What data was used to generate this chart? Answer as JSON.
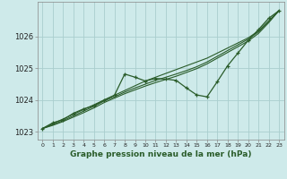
{
  "title": "Graphe pression niveau de la mer (hPa)",
  "background_color": "#ceeaea",
  "grid_color": "#aacece",
  "line_color": "#2a5c2a",
  "xlim": [
    -0.5,
    23.5
  ],
  "ylim": [
    1022.75,
    1027.1
  ],
  "yticks": [
    1023,
    1024,
    1025,
    1026
  ],
  "xticks": [
    0,
    1,
    2,
    3,
    4,
    5,
    6,
    7,
    8,
    9,
    10,
    11,
    12,
    13,
    14,
    15,
    16,
    17,
    18,
    19,
    20,
    21,
    22,
    23
  ],
  "trend1": [
    1023.1,
    1023.25,
    1023.4,
    1023.55,
    1023.7,
    1023.85,
    1024.0,
    1024.15,
    1024.3,
    1024.45,
    1024.6,
    1024.72,
    1024.84,
    1024.96,
    1025.08,
    1025.2,
    1025.32,
    1025.48,
    1025.64,
    1025.8,
    1025.96,
    1026.18,
    1026.5,
    1026.82
  ],
  "trend2": [
    1023.1,
    1023.22,
    1023.35,
    1023.5,
    1023.65,
    1023.8,
    1023.97,
    1024.1,
    1024.25,
    1024.38,
    1024.5,
    1024.62,
    1024.72,
    1024.82,
    1024.93,
    1025.05,
    1025.2,
    1025.38,
    1025.56,
    1025.74,
    1025.92,
    1026.15,
    1026.48,
    1026.82
  ],
  "trend3": [
    1023.1,
    1023.2,
    1023.32,
    1023.46,
    1023.6,
    1023.75,
    1023.92,
    1024.06,
    1024.2,
    1024.32,
    1024.44,
    1024.55,
    1024.65,
    1024.75,
    1024.87,
    1024.99,
    1025.14,
    1025.32,
    1025.5,
    1025.68,
    1025.86,
    1026.1,
    1026.44,
    1026.82
  ],
  "main_series": [
    1023.1,
    1023.28,
    1023.38,
    1023.58,
    1023.72,
    1023.82,
    1024.0,
    1024.15,
    1024.82,
    1024.72,
    1024.6,
    1024.68,
    1024.66,
    1024.62,
    1024.38,
    1024.16,
    1024.1,
    1024.58,
    1025.08,
    1025.48,
    1025.88,
    1026.22,
    1026.58,
    1026.82
  ]
}
